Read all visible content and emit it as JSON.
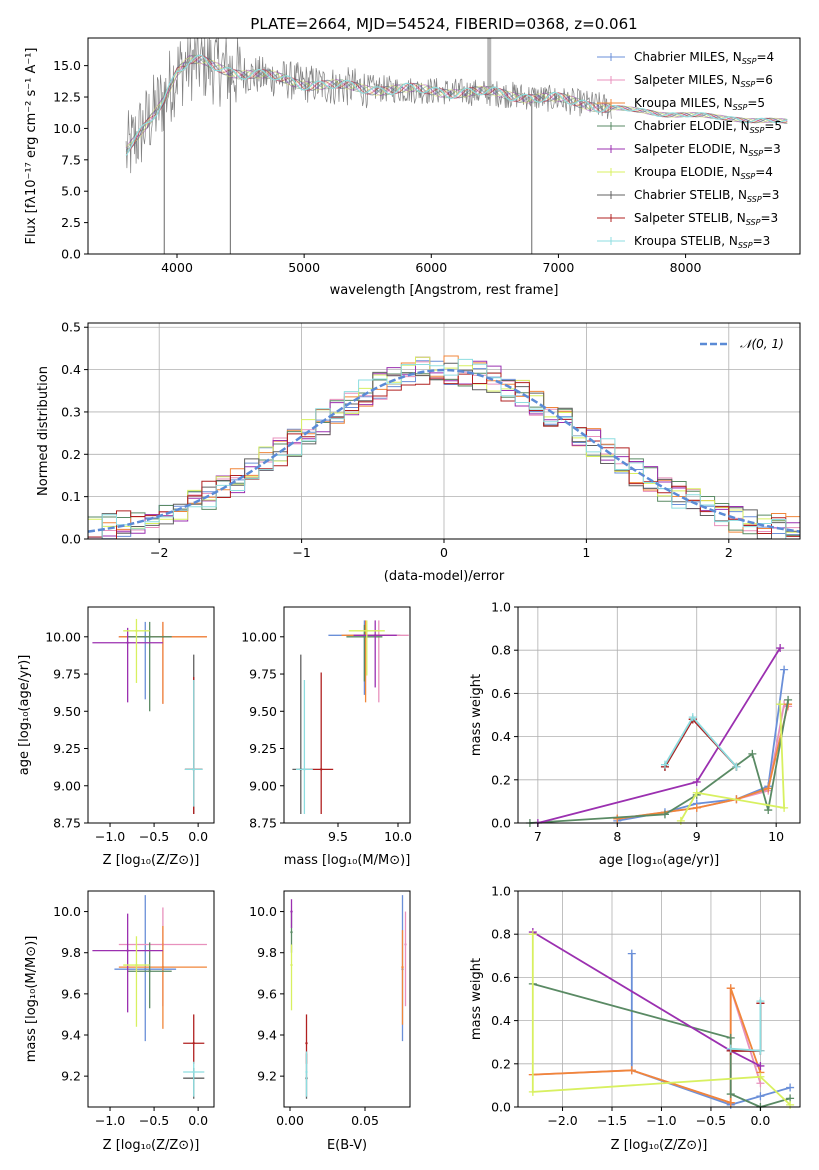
{
  "colors": {
    "grid": "#b0b0b0",
    "spectrum": "#808080",
    "normal_curve": "#5b8bd6",
    "models": [
      "#6a8fd8",
      "#e891bd",
      "#f0863a",
      "#5a8a64",
      "#9b30b0",
      "#d8f060",
      "#606060",
      "#b02020",
      "#8ddde0"
    ]
  },
  "legend_models": [
    "Chabrier MILES, N",
    "Salpeter MILES, N",
    "Kroupa MILES, N",
    "Chabrier ELODIE, N",
    "Salpeter ELODIE, N",
    "Kroupa ELODIE, N",
    "Chabrier STELIB, N",
    "Salpeter STELIB, N",
    "Kroupa STELIB, N"
  ],
  "legend_sub": "SSP",
  "legend_nssp": [
    "=4",
    "=6",
    "=5",
    "=5",
    "=3",
    "=4",
    "=3",
    "=3",
    "=3"
  ],
  "chart_data": [
    {
      "id": "spectrum",
      "type": "line",
      "title": "PLATE=2664, MJD=54524, FIBERID=0368, z=0.061",
      "xlabel": "wavelength [Angstrom, rest frame]",
      "ylabel": "Flux [fλ10⁻¹⁷ erg cm⁻² s⁻¹ A⁻¹]",
      "xlim": [
        3300,
        8900
      ],
      "ylim": [
        0,
        17.2
      ],
      "xticks": [
        "4000",
        "5000",
        "6000",
        "7000",
        "8000"
      ],
      "yticks": [
        "0.0",
        "2.5",
        "5.0",
        "7.5",
        "10.0",
        "12.5",
        "15.0"
      ],
      "grid": false,
      "legend_position": "upper right",
      "continuum": {
        "x": [
          3600,
          3700,
          3800,
          3900,
          4000,
          4100,
          4200,
          4300,
          4500,
          4800,
          5000,
          5200,
          5500,
          6000,
          6500,
          6800,
          7000,
          7200,
          7400,
          7600,
          7800,
          8000,
          8200,
          8400,
          8600,
          8800
        ],
        "y": [
          8.0,
          9.5,
          11.0,
          12.5,
          14.5,
          15.3,
          15.3,
          15.0,
          14.4,
          14.0,
          13.6,
          13.4,
          13.2,
          13.0,
          12.8,
          12.5,
          12.3,
          12.0,
          11.7,
          11.4,
          11.2,
          11.1,
          10.9,
          10.8,
          10.6,
          10.5
        ]
      }
    },
    {
      "id": "residuals",
      "type": "line",
      "xlabel": "(data-model)/error",
      "ylabel": "Normed distribution",
      "xlim": [
        -2.5,
        2.5
      ],
      "ylim": [
        0,
        0.51
      ],
      "xticks": [
        "−2",
        "−1",
        "0",
        "1",
        "2"
      ],
      "yticks": [
        "0.0",
        "0.1",
        "0.2",
        "0.3",
        "0.4",
        "0.5"
      ],
      "grid": true,
      "legend": "𝒩(0, 1)",
      "series": [
        {
          "mean": 0,
          "sigma": 1
        }
      ]
    },
    {
      "id": "age_vs_Z",
      "type": "scatter",
      "xlabel": "Z [log₁₀(Z/Z⊙)]",
      "ylabel": "age  [log₁₀(age/yr)]",
      "xlim": [
        -1.25,
        0.18
      ],
      "ylim": [
        8.75,
        10.2
      ],
      "xticks": [
        "−1.0",
        "−0.5",
        "0.0"
      ],
      "yticks": [
        "8.75",
        "9.00",
        "9.25",
        "9.50",
        "9.75",
        "10.00"
      ],
      "points": [
        {
          "x": -0.6,
          "y": 10.0,
          "xerr": 0.3,
          "yerr": [
            0.42,
            0.1
          ]
        },
        {
          "x": -0.4,
          "y": 10.0,
          "xerr": 0.5,
          "yerr": [
            0.45,
            0.1
          ]
        },
        {
          "x": -0.4,
          "y": 10.0,
          "xerr": 0.5,
          "yerr": [
            0.45,
            0.1
          ]
        },
        {
          "x": -0.55,
          "y": 10.0,
          "xerr": 0.25,
          "yerr": [
            0.5,
            0.1
          ]
        },
        {
          "x": -0.8,
          "y": 9.96,
          "xerr": 0.4,
          "yerr": [
            0.4,
            0.1
          ]
        },
        {
          "x": -0.7,
          "y": 10.04,
          "xerr": 0.15,
          "yerr": [
            0.35,
            0.08
          ]
        },
        {
          "x": -0.05,
          "y": 9.11,
          "xerr": 0.1,
          "yerr": [
            0.3,
            0.77
          ]
        },
        {
          "x": -0.05,
          "y": 9.11,
          "xerr": 0.1,
          "yerr": [
            0.3,
            0.62
          ]
        },
        {
          "x": -0.05,
          "y": 9.11,
          "xerr": 0.1,
          "yerr": [
            0.25,
            0.6
          ]
        }
      ]
    },
    {
      "id": "age_vs_mass",
      "type": "scatter",
      "xlabel": "mass [log₁₀(M/M⊙)]",
      "xlim": [
        9.05,
        10.1
      ],
      "ylim": [
        8.75,
        10.2
      ],
      "xticks": [
        "9.5",
        "10.0"
      ],
      "yticks": [
        "8.75",
        "9.00",
        "9.25",
        "9.50",
        "9.75",
        "10.00"
      ],
      "points": [
        {
          "x": 9.72,
          "y": 10.01,
          "xerr": 0.3,
          "yerr": [
            0.4,
            0.1
          ]
        },
        {
          "x": 9.84,
          "y": 10.01,
          "xerr": 0.25,
          "yerr": [
            0.45,
            0.1
          ]
        },
        {
          "x": 9.73,
          "y": 10.01,
          "xerr": 0.2,
          "yerr": [
            0.45,
            0.1
          ]
        },
        {
          "x": 9.72,
          "y": 10.0,
          "xerr": 0.15,
          "yerr": [
            0.3,
            0.08
          ]
        },
        {
          "x": 9.81,
          "y": 10.01,
          "xerr": 0.18,
          "yerr": [
            0.35,
            0.1
          ]
        },
        {
          "x": 9.74,
          "y": 10.04,
          "xerr": 0.15,
          "yerr": [
            0.3,
            0.07
          ]
        },
        {
          "x": 9.19,
          "y": 9.11,
          "xerr": 0.07,
          "yerr": [
            0.3,
            0.77
          ]
        },
        {
          "x": 9.36,
          "y": 9.11,
          "xerr": 0.1,
          "yerr": [
            0.3,
            0.65
          ]
        },
        {
          "x": 9.22,
          "y": 9.11,
          "xerr": 0.07,
          "yerr": [
            0.3,
            0.6
          ]
        }
      ]
    },
    {
      "id": "weight_vs_age",
      "type": "line",
      "xlabel": "age  [log₁₀(age/yr)]",
      "ylabel": "mass weight",
      "xlim": [
        6.75,
        10.3
      ],
      "ylim": [
        0,
        1.0
      ],
      "xticks": [
        "7",
        "8",
        "9",
        "10"
      ],
      "yticks": [
        "0.0",
        "0.2",
        "0.4",
        "0.6",
        "0.8",
        "1.0"
      ],
      "grid": true,
      "series": [
        {
          "x": [
            8.0,
            8.6,
            9.0,
            9.5,
            9.9,
            10.1
          ],
          "y": [
            0.01,
            0.05,
            0.09,
            0.11,
            0.17,
            0.71
          ]
        },
        {
          "x": [
            8.0,
            9.0,
            9.5,
            9.9,
            10.1,
            10.15
          ],
          "y": [
            0.02,
            0.07,
            0.11,
            0.15,
            0.55,
            0.54
          ]
        },
        {
          "x": [
            8.0,
            9.0,
            9.5,
            9.9,
            10.15
          ],
          "y": [
            0.02,
            0.07,
            0.11,
            0.16,
            0.55
          ]
        },
        {
          "x": [
            6.9,
            8.6,
            9.0,
            9.7,
            9.9,
            10.15
          ],
          "y": [
            0.0,
            0.04,
            0.13,
            0.32,
            0.06,
            0.57
          ]
        },
        {
          "x": [
            7.0,
            9.0,
            10.05
          ],
          "y": [
            0.0,
            0.19,
            0.81
          ]
        },
        {
          "x": [
            8.8,
            9.0,
            10.1,
            10.05
          ],
          "y": [
            0.01,
            0.14,
            0.07,
            0.55
          ]
        },
        {
          "x": [
            8.6,
            8.95,
            9.5
          ],
          "y": [
            0.26,
            0.48,
            0.26
          ]
        },
        {
          "x": [
            8.6,
            8.95,
            9.5
          ],
          "y": [
            0.26,
            0.48,
            0.26
          ]
        },
        {
          "x": [
            8.6,
            8.95,
            9.5
          ],
          "y": [
            0.27,
            0.49,
            0.26
          ]
        }
      ]
    },
    {
      "id": "mass_vs_Z",
      "type": "scatter",
      "xlabel": "Z [log₁₀(Z/Z⊙)]",
      "ylabel": "mass [log₁₀(M/M⊙)]",
      "xlim": [
        -1.25,
        0.18
      ],
      "ylim": [
        9.05,
        10.1
      ],
      "xticks": [
        "−1.0",
        "−0.5",
        "0.0"
      ],
      "yticks": [
        "9.2",
        "9.4",
        "9.6",
        "9.8",
        "10.0"
      ],
      "points": [
        {
          "x": -0.6,
          "y": 9.72,
          "xerr": 0.35,
          "yerr": [
            0.35,
            0.36
          ]
        },
        {
          "x": -0.4,
          "y": 9.84,
          "xerr": 0.5,
          "yerr": [
            0.3,
            0.18
          ]
        },
        {
          "x": -0.4,
          "y": 9.73,
          "xerr": 0.5,
          "yerr": [
            0.3,
            0.2
          ]
        },
        {
          "x": -0.55,
          "y": 9.71,
          "xerr": 0.25,
          "yerr": [
            0.18,
            0.14
          ]
        },
        {
          "x": -0.8,
          "y": 9.81,
          "xerr": 0.4,
          "yerr": [
            0.3,
            0.18
          ]
        },
        {
          "x": -0.7,
          "y": 9.74,
          "xerr": 0.15,
          "yerr": [
            0.3,
            0.14
          ]
        },
        {
          "x": -0.05,
          "y": 9.19,
          "xerr": 0.12,
          "yerr": [
            0.1,
            0.05
          ]
        },
        {
          "x": -0.05,
          "y": 9.36,
          "xerr": 0.12,
          "yerr": [
            0.1,
            0.14
          ]
        },
        {
          "x": -0.05,
          "y": 9.22,
          "xerr": 0.12,
          "yerr": [
            0.12,
            0.05
          ]
        }
      ]
    },
    {
      "id": "mass_vs_ebv",
      "type": "scatter",
      "xlabel": "E(B-V)",
      "xlim": [
        -0.004,
        0.08
      ],
      "ylim": [
        9.05,
        10.1
      ],
      "xticks": [
        "0.00",
        "0.05"
      ],
      "yticks": [
        "9.2",
        "9.4",
        "9.6",
        "9.8",
        "10.0"
      ],
      "points": [
        {
          "x": 0.075,
          "y": 9.72,
          "xerr": 0,
          "yerr": [
            0.35,
            0.36
          ]
        },
        {
          "x": 0.077,
          "y": 9.84,
          "xerr": 0,
          "yerr": [
            0.3,
            0.16
          ]
        },
        {
          "x": 0.075,
          "y": 9.73,
          "xerr": 0,
          "yerr": [
            0.28,
            0.18
          ]
        },
        {
          "x": 0.001,
          "y": 9.9,
          "xerr": 0,
          "yerr": [
            0.1,
            0.1
          ]
        },
        {
          "x": 0.001,
          "y": 10.0,
          "xerr": 0,
          "yerr": [
            0.08,
            0.06
          ]
        },
        {
          "x": 0.001,
          "y": 9.74,
          "xerr": 0,
          "yerr": [
            0.22,
            0.1
          ]
        },
        {
          "x": 0.011,
          "y": 9.19,
          "xerr": 0,
          "yerr": [
            0.1,
            0.12
          ]
        },
        {
          "x": 0.011,
          "y": 9.36,
          "xerr": 0,
          "yerr": [
            0.1,
            0.14
          ]
        },
        {
          "x": 0.011,
          "y": 9.22,
          "xerr": 0,
          "yerr": [
            0.12,
            0.1
          ]
        }
      ]
    },
    {
      "id": "weight_vs_Z",
      "type": "line",
      "xlabel": "Z [log₁₀(Z/Z⊙)]",
      "ylabel": "mass weight",
      "xlim": [
        -2.45,
        0.4
      ],
      "ylim": [
        0,
        1.0
      ],
      "xticks": [
        "−2.0",
        "−1.5",
        "−1.0",
        "−0.5",
        "0.0"
      ],
      "yticks": [
        "0.0",
        "0.2",
        "0.4",
        "0.6",
        "0.8",
        "1.0"
      ],
      "grid": true,
      "series": [
        {
          "x": [
            -1.3,
            -1.3,
            -0.3,
            0.0,
            0.3
          ],
          "y": [
            0.71,
            0.17,
            0.01,
            0.05,
            0.09
          ]
        },
        {
          "x": [
            -2.3,
            -1.3,
            -0.3,
            -0.3,
            0.0
          ],
          "y": [
            0.15,
            0.17,
            0.02,
            0.55,
            0.11
          ]
        },
        {
          "x": [
            -2.3,
            -1.3,
            -0.3,
            -0.3,
            0.0
          ],
          "y": [
            0.15,
            0.17,
            0.02,
            0.55,
            0.16
          ]
        },
        {
          "x": [
            -2.3,
            -0.3,
            -0.3,
            0.0,
            0.3
          ],
          "y": [
            0.57,
            0.32,
            0.06,
            0.0,
            0.04
          ]
        },
        {
          "x": [
            -2.3,
            -0.3,
            0.0
          ],
          "y": [
            0.81,
            0.26,
            0.19
          ]
        },
        {
          "x": [
            -2.3,
            -2.3,
            0.0,
            0.3
          ],
          "y": [
            0.8,
            0.07,
            0.14,
            0.01
          ]
        },
        {
          "x": [
            -0.3,
            0.0,
            0.0
          ],
          "y": [
            0.26,
            0.26,
            0.48
          ]
        },
        {
          "x": [
            -0.3,
            0.0,
            0.0
          ],
          "y": [
            0.26,
            0.26,
            0.48
          ]
        },
        {
          "x": [
            -0.3,
            0.0,
            0.0
          ],
          "y": [
            0.27,
            0.26,
            0.49
          ]
        }
      ]
    }
  ]
}
